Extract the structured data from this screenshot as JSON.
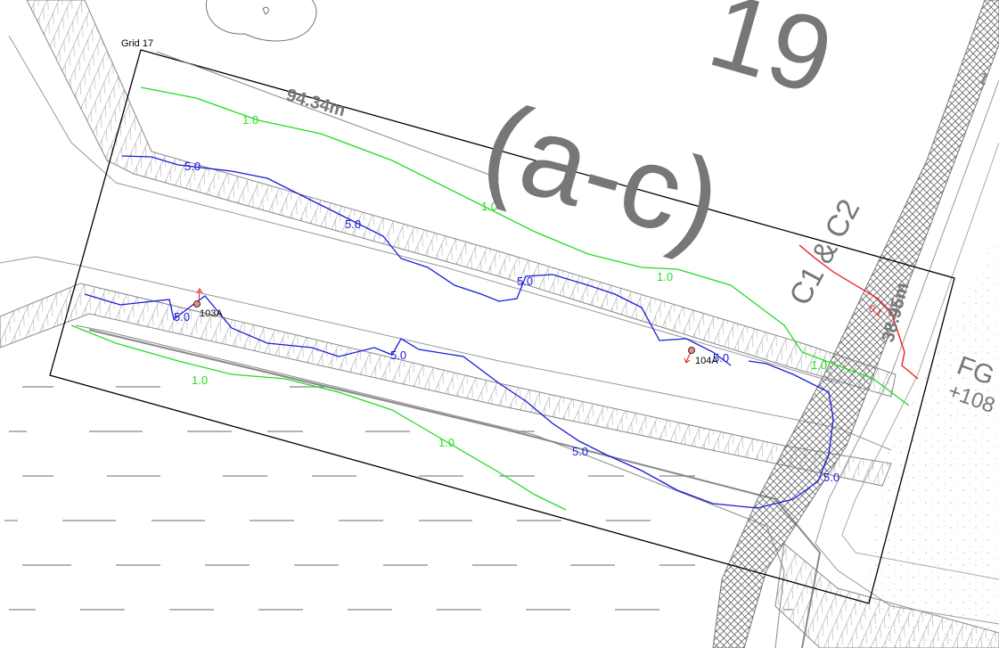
{
  "grid": {
    "label": "Grid 17"
  },
  "dimensions": {
    "long_side": "94.34m",
    "short_side": "38.95m"
  },
  "watermark": {
    "top": "19",
    "main": "(a-c)",
    "side": "C1 & C2"
  },
  "finished_ground": {
    "label": "FG",
    "level": "+108"
  },
  "contours": {
    "green_value": "1.0",
    "blue_value": "5.0",
    "red_value": "0.1"
  },
  "points": [
    {
      "id": "103A"
    },
    {
      "id": "104A"
    }
  ],
  "edge_label": "1"
}
